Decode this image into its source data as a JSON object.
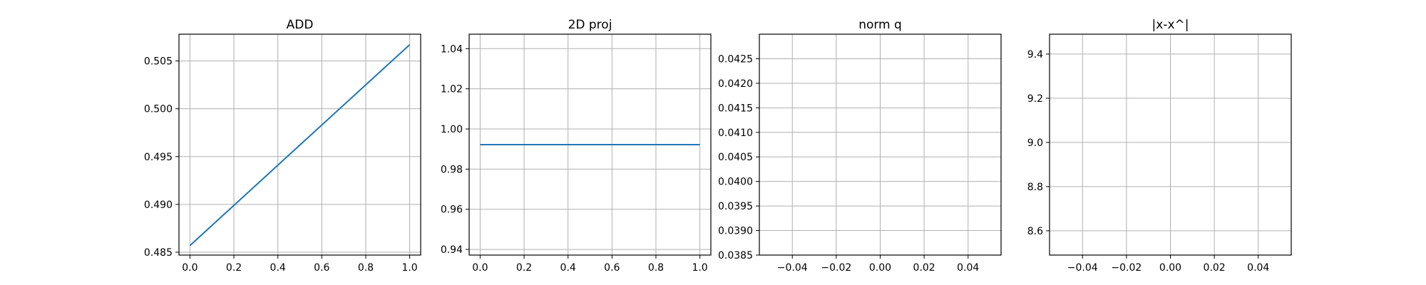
{
  "figure": {
    "background": "#ffffff"
  },
  "chart_data": [
    {
      "type": "line",
      "title": "ADD",
      "xlabel": "",
      "ylabel": "",
      "grid": true,
      "xlim": [
        -0.05,
        1.05
      ],
      "ylim": [
        0.4847,
        0.5078
      ],
      "xticks": [
        "0.0",
        "0.2",
        "0.4",
        "0.6",
        "0.8",
        "1.0"
      ],
      "yticks": [
        "0.485",
        "0.490",
        "0.495",
        "0.500",
        "0.505"
      ],
      "series": [
        {
          "color": "#1f77b4",
          "x": [
            0,
            1
          ],
          "y": [
            0.4857,
            0.5067
          ]
        }
      ]
    },
    {
      "type": "line",
      "title": "2D proj",
      "xlabel": "",
      "ylabel": "",
      "grid": true,
      "xlim": [
        -0.05,
        1.05
      ],
      "ylim": [
        0.9372,
        1.0472
      ],
      "xticks": [
        "0.0",
        "0.2",
        "0.4",
        "0.6",
        "0.8",
        "1.0"
      ],
      "yticks": [
        "0.94",
        "0.96",
        "0.98",
        "1.00",
        "1.02",
        "1.04"
      ],
      "series": [
        {
          "color": "#1f77b4",
          "x": [
            0,
            1
          ],
          "y": [
            0.9922,
            0.9922
          ]
        }
      ]
    },
    {
      "type": "line",
      "title": "norm q",
      "xlabel": "",
      "ylabel": "",
      "grid": true,
      "xlim": [
        -0.055,
        0.055
      ],
      "ylim": [
        0.0385,
        0.043
      ],
      "xticks": [
        "−0.04",
        "−0.02",
        "0.00",
        "0.02",
        "0.04"
      ],
      "yticks": [
        "0.0385",
        "0.0390",
        "0.0395",
        "0.0400",
        "0.0405",
        "0.0410",
        "0.0415",
        "0.0420",
        "0.0425"
      ],
      "series": []
    },
    {
      "type": "line",
      "title": "|x-x^|",
      "xlabel": "",
      "ylabel": "",
      "grid": true,
      "xlim": [
        -0.055,
        0.055
      ],
      "ylim": [
        8.49,
        9.49
      ],
      "xticks": [
        "−0.04",
        "−0.02",
        "0.00",
        "0.02",
        "0.04"
      ],
      "yticks": [
        "8.6",
        "8.8",
        "9.0",
        "9.2",
        "9.4"
      ],
      "series": []
    }
  ]
}
